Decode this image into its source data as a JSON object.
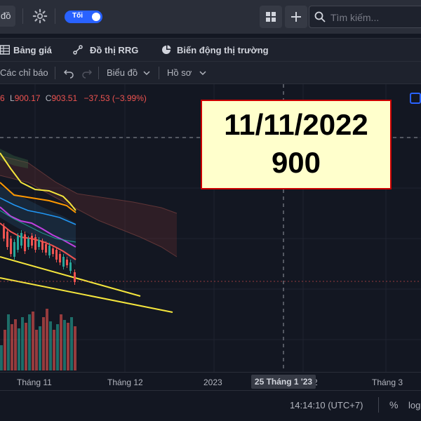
{
  "topbar": {
    "left_tab_label": "đồ",
    "theme_toggle_label": "Tối",
    "search_placeholder": "Tìm kiếm..."
  },
  "navbar": {
    "items": [
      {
        "label": "Bảng giá",
        "icon": "table-icon"
      },
      {
        "label": "Đồ thị RRG",
        "icon": "rrg-chart-icon"
      },
      {
        "label": "Biến động thị trường",
        "icon": "pie-chart-icon"
      }
    ]
  },
  "toolbar": {
    "indicators_label": "Các chỉ báo",
    "chart_type_label": "Biểu đồ",
    "profile_label": "Hồ sơ"
  },
  "ohlc": {
    "open_tail": "6",
    "low_label": "L",
    "low_value": "900.17",
    "close_label": "C",
    "close_value": "903.51",
    "change": "−37.53 (−3.99%)"
  },
  "annotation": {
    "date": "11/11/2022",
    "value": "900"
  },
  "xaxis": {
    "labels": [
      "Tháng 11",
      "Tháng 12",
      "2023",
      "2",
      "Tháng 3"
    ],
    "hover_label": "25 Tháng 1 '23"
  },
  "bottombar": {
    "clock": "14:14:10 (UTC+7)",
    "percent_label": "%",
    "log_label": "log"
  },
  "colors": {
    "background": "#131722",
    "accent": "#2962ff",
    "up": "#26a69a",
    "down": "#ef5350",
    "trendline": "#f5e63d",
    "callout_bg": "#ffffcc",
    "callout_border": "#cc0000"
  }
}
